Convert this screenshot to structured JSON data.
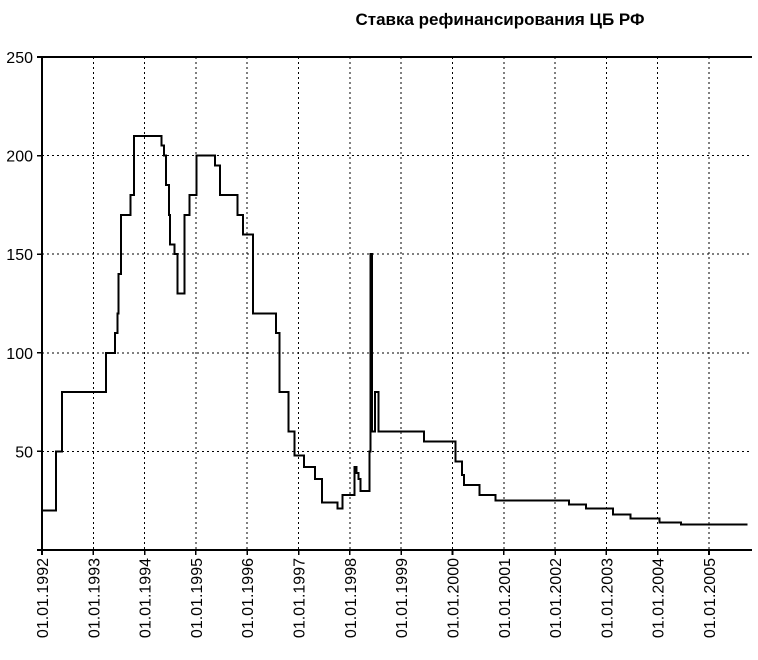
{
  "chart_data": {
    "type": "line",
    "line_style": "step-after",
    "title": "Ставка рефинансирования ЦБ РФ",
    "xlabel": "",
    "ylabel": "",
    "ylim": [
      0,
      250
    ],
    "grid": "dashed",
    "legend": "none",
    "line_color": "#000000",
    "background_color": "#ffffff",
    "y_ticks": [
      {
        "value": 0,
        "label": ""
      },
      {
        "value": 50,
        "label": "50"
      },
      {
        "value": 100,
        "label": "100"
      },
      {
        "value": 150,
        "label": "150"
      },
      {
        "value": 200,
        "label": "200"
      },
      {
        "value": 250,
        "label": "250"
      }
    ],
    "x_tick_labels": [
      "01.01.1992",
      "01.01.1993",
      "01.01.1994",
      "01.01.1995",
      "01.01.1996",
      "01.01.1997",
      "01.01.1998",
      "01.01.1999",
      "01.01.2000",
      "01.01.2001",
      "01.01.2002",
      "01.01.2003",
      "01.01.2004",
      "01.01.2005"
    ],
    "points": [
      {
        "date": "01.01.1992",
        "value": 20
      },
      {
        "date": "10.04.1992",
        "value": 50
      },
      {
        "date": "23.05.1992",
        "value": 80
      },
      {
        "date": "30.03.1993",
        "value": 100
      },
      {
        "date": "02.06.1993",
        "value": 110
      },
      {
        "date": "22.06.1993",
        "value": 120
      },
      {
        "date": "29.06.1993",
        "value": 140
      },
      {
        "date": "15.07.1993",
        "value": 170
      },
      {
        "date": "23.09.1993",
        "value": 180
      },
      {
        "date": "15.10.1993",
        "value": 210
      },
      {
        "date": "29.04.1994",
        "value": 205
      },
      {
        "date": "17.05.1994",
        "value": 200
      },
      {
        "date": "02.06.1994",
        "value": 185
      },
      {
        "date": "22.06.1994",
        "value": 170
      },
      {
        "date": "30.06.1994",
        "value": 155
      },
      {
        "date": "01.08.1994",
        "value": 150
      },
      {
        "date": "23.08.1994",
        "value": 130
      },
      {
        "date": "12.10.1994",
        "value": 170
      },
      {
        "date": "17.11.1994",
        "value": 180
      },
      {
        "date": "06.01.1995",
        "value": 200
      },
      {
        "date": "16.05.1995",
        "value": 195
      },
      {
        "date": "19.06.1995",
        "value": 180
      },
      {
        "date": "24.10.1995",
        "value": 170
      },
      {
        "date": "01.12.1995",
        "value": 160
      },
      {
        "date": "10.02.1996",
        "value": 120
      },
      {
        "date": "24.07.1996",
        "value": 110
      },
      {
        "date": "19.08.1996",
        "value": 80
      },
      {
        "date": "21.10.1996",
        "value": 60
      },
      {
        "date": "02.12.1996",
        "value": 48
      },
      {
        "date": "10.02.1997",
        "value": 42
      },
      {
        "date": "28.04.1997",
        "value": 36
      },
      {
        "date": "16.06.1997",
        "value": 24
      },
      {
        "date": "06.10.1997",
        "value": 21
      },
      {
        "date": "11.11.1997",
        "value": 28
      },
      {
        "date": "02.02.1998",
        "value": 42
      },
      {
        "date": "17.02.1998",
        "value": 39
      },
      {
        "date": "02.03.1998",
        "value": 36
      },
      {
        "date": "16.03.1998",
        "value": 30
      },
      {
        "date": "19.05.1998",
        "value": 50
      },
      {
        "date": "27.05.1998",
        "value": 150
      },
      {
        "date": "05.06.1998",
        "value": 60
      },
      {
        "date": "29.06.1998",
        "value": 80
      },
      {
        "date": "24.07.1998",
        "value": 60
      },
      {
        "date": "10.06.1999",
        "value": 55
      },
      {
        "date": "24.01.2000",
        "value": 45
      },
      {
        "date": "07.03.2000",
        "value": 38
      },
      {
        "date": "21.03.2000",
        "value": 33
      },
      {
        "date": "10.07.2000",
        "value": 28
      },
      {
        "date": "04.11.2000",
        "value": 25
      },
      {
        "date": "09.04.2002",
        "value": 23
      },
      {
        "date": "07.08.2002",
        "value": 21
      },
      {
        "date": "17.02.2003",
        "value": 18
      },
      {
        "date": "21.06.2003",
        "value": 16
      },
      {
        "date": "15.01.2004",
        "value": 14
      },
      {
        "date": "15.06.2004",
        "value": 13
      }
    ],
    "end_date": "01.10.2005"
  }
}
